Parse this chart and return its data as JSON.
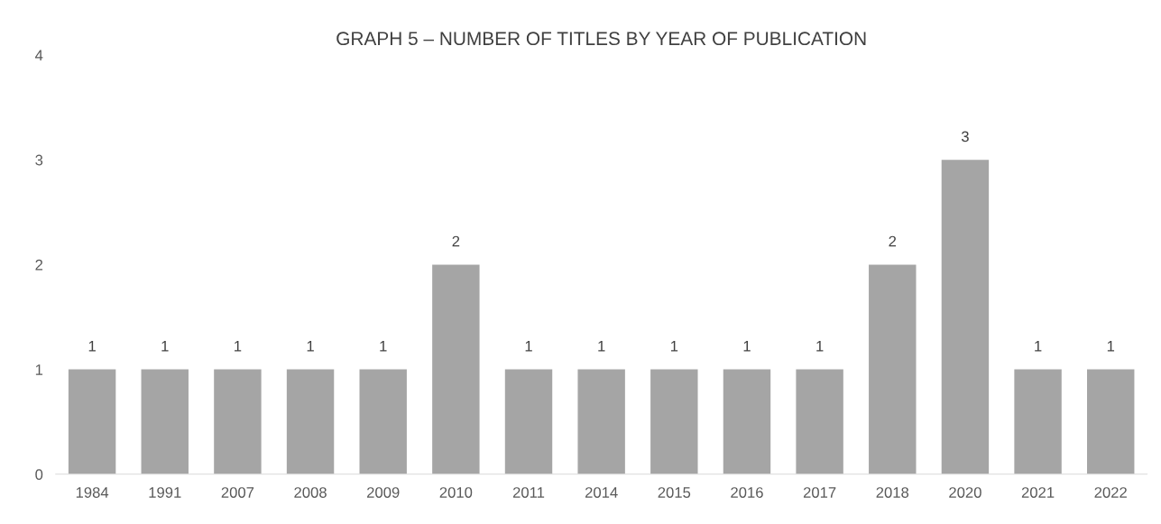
{
  "chart_data": {
    "type": "bar",
    "title": "GRAPH 5 – NUMBER OF TITLES BY YEAR OF PUBLICATION",
    "categories": [
      "1984",
      "1991",
      "2007",
      "2008",
      "2009",
      "2010",
      "2011",
      "2014",
      "2015",
      "2016",
      "2017",
      "2018",
      "2020",
      "2021",
      "2022"
    ],
    "values": [
      1,
      1,
      1,
      1,
      1,
      2,
      1,
      1,
      1,
      1,
      1,
      2,
      3,
      1,
      1
    ],
    "color": "#a5a5a5",
    "ylim": [
      0,
      4
    ],
    "yticks": [
      0,
      1,
      2,
      3,
      4
    ],
    "grid": false,
    "data_labels": true
  }
}
